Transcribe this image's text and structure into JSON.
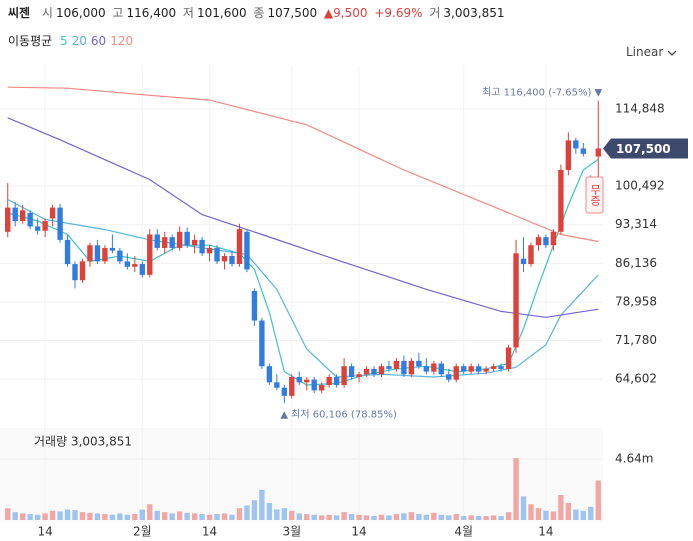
{
  "chart_data": {
    "type": "candlestick",
    "title": "씨젠",
    "summary": [
      {
        "label": "시",
        "value": "106,000"
      },
      {
        "label": "고",
        "value": "116,400"
      },
      {
        "label": "저",
        "value": "101,600"
      },
      {
        "label": "종",
        "value": "107,500"
      }
    ],
    "change": "▲9,500",
    "change_pct": "+9.69%",
    "volume_summary": {
      "label": "거",
      "value": "3,003,851"
    },
    "ma_title": "이동평균",
    "scale_label": "Linear",
    "categories": [
      null,
      null,
      null,
      null,
      null,
      "14",
      null,
      null,
      null,
      null,
      null,
      null,
      null,
      null,
      null,
      null,
      null,
      null,
      "2월",
      null,
      null,
      null,
      null,
      null,
      null,
      null,
      null,
      "14",
      null,
      null,
      null,
      null,
      null,
      null,
      null,
      null,
      null,
      null,
      "3월",
      null,
      null,
      null,
      null,
      null,
      null,
      null,
      null,
      "14",
      null,
      null,
      null,
      null,
      null,
      null,
      null,
      null,
      null,
      null,
      null,
      null,
      null,
      "4월",
      null,
      null,
      null,
      null,
      null,
      null,
      null,
      null,
      null,
      null,
      "14",
      null,
      null,
      null,
      null,
      null,
      null,
      null
    ],
    "open": [
      92000,
      96500,
      94000,
      95500,
      93000,
      92200,
      94500,
      96500,
      90500,
      86000,
      83000,
      86500,
      89500,
      86500,
      89000,
      88500,
      86500,
      85500,
      86000,
      84000,
      91500,
      89000,
      91000,
      89000,
      92000,
      89500,
      90500,
      88000,
      89000,
      86500,
      87500,
      86000,
      92000,
      81000,
      75500,
      67000,
      64000,
      63000,
      61500,
      65000,
      64000,
      64500,
      62500,
      63500,
      65000,
      63500,
      67000,
      65000,
      65500,
      66500,
      65500,
      67000,
      66500,
      68000,
      65500,
      68000,
      67000,
      66000,
      67500,
      65500,
      64500,
      67000,
      66000,
      67000,
      66000,
      66500,
      67000,
      66500,
      70500,
      87000,
      86000,
      89500,
      91000,
      89500,
      92000,
      103500,
      109000,
      107500,
      101500,
      106000
    ],
    "high": [
      101100,
      97500,
      97000,
      96000,
      94500,
      94500,
      97000,
      97200,
      91500,
      86500,
      87000,
      90000,
      90500,
      89500,
      91500,
      89000,
      88000,
      87500,
      86500,
      92500,
      92500,
      92000,
      91500,
      93000,
      92800,
      91500,
      91000,
      89500,
      89500,
      88000,
      88500,
      93500,
      92500,
      81500,
      76000,
      67500,
      65500,
      63500,
      65500,
      66000,
      65000,
      65000,
      64000,
      65500,
      65500,
      68500,
      67500,
      66000,
      67000,
      67000,
      67500,
      68000,
      68500,
      69000,
      68500,
      69500,
      68500,
      68000,
      68000,
      66500,
      67500,
      67500,
      67500,
      67500,
      67000,
      67500,
      67500,
      71000,
      90500,
      91000,
      90000,
      91500,
      91500,
      92500,
      104500,
      110500,
      109500,
      108500,
      102500,
      116400
    ],
    "low": [
      91000,
      93000,
      93500,
      92500,
      91500,
      91000,
      93000,
      90000,
      85500,
      81500,
      82500,
      85500,
      86000,
      86000,
      88000,
      86000,
      85000,
      84500,
      83500,
      83500,
      88500,
      88000,
      88500,
      88500,
      89000,
      88000,
      87500,
      86500,
      86000,
      85000,
      85500,
      85500,
      84500,
      74500,
      66500,
      63500,
      62500,
      60106,
      61000,
      63500,
      62500,
      62000,
      62000,
      63000,
      63000,
      63000,
      64500,
      64000,
      65000,
      65000,
      65000,
      66000,
      66000,
      65000,
      65000,
      66500,
      65500,
      65500,
      65000,
      64000,
      64000,
      65500,
      65500,
      65500,
      65500,
      66000,
      66000,
      66000,
      69500,
      84500,
      85500,
      88500,
      89000,
      88500,
      91500,
      102500,
      106500,
      106000,
      97500,
      101600
    ],
    "close": [
      96500,
      94000,
      96000,
      93000,
      92200,
      94000,
      96500,
      90500,
      86000,
      83000,
      86500,
      89500,
      86500,
      89000,
      88500,
      86500,
      85500,
      86000,
      84000,
      91500,
      89000,
      91000,
      89000,
      92000,
      89500,
      90500,
      88000,
      89000,
      86500,
      87500,
      86000,
      92500,
      85000,
      75500,
      67000,
      64000,
      63000,
      61500,
      65000,
      64000,
      64500,
      62500,
      63500,
      65000,
      63500,
      67000,
      65000,
      65500,
      66500,
      65500,
      67000,
      66500,
      68000,
      65500,
      68000,
      67000,
      66000,
      67500,
      65500,
      64500,
      67000,
      66000,
      67000,
      66000,
      66500,
      67000,
      66500,
      70500,
      88000,
      86000,
      89500,
      91000,
      89500,
      92000,
      103500,
      109000,
      107500,
      106500,
      98000,
      107500
    ],
    "up_color": "#e0403a",
    "down_color": "#2f7de1",
    "ylim": [
      56070,
      121160
    ],
    "yticks": [
      {
        "value": 114848,
        "label": "114,848"
      },
      {
        "value": 100492,
        "label": "100,492"
      },
      {
        "value": 93314,
        "label": "93,314"
      },
      {
        "value": 86136,
        "label": "86,136"
      },
      {
        "value": 78958,
        "label": "78,958"
      },
      {
        "value": 71780,
        "label": "71,780"
      },
      {
        "value": 64602,
        "label": "64,602"
      }
    ],
    "grid": true,
    "moving_averages": [
      {
        "name": "5",
        "color": "#3cc4c8",
        "x": [
          0,
          4,
          8,
          11,
          15,
          19,
          23,
          27,
          31,
          33,
          35,
          37,
          40,
          44,
          48,
          52,
          56,
          60,
          64,
          67,
          69,
          71,
          73,
          75,
          77,
          79
        ],
        "values": [
          95500,
          94000,
          91500,
          86500,
          87500,
          86500,
          89500,
          89500,
          88000,
          85000,
          77000,
          66000,
          63500,
          63800,
          65500,
          66500,
          67000,
          66000,
          66500,
          67500,
          74000,
          82000,
          89500,
          97000,
          103500,
          105500
        ]
      },
      {
        "name": "20",
        "color": "#58b6dc",
        "x": [
          0,
          5,
          13,
          19,
          26,
          32,
          36,
          40,
          44,
          50,
          57,
          64,
          68,
          72,
          74,
          79
        ],
        "values": [
          98000,
          94300,
          92400,
          90500,
          89000,
          87800,
          81300,
          70200,
          65000,
          65500,
          65000,
          65700,
          66800,
          71000,
          76500,
          84000
        ]
      },
      {
        "name": "60",
        "color": "#7265d0",
        "x": [
          0,
          7,
          19,
          26,
          34,
          44,
          56,
          66,
          72,
          79
        ],
        "values": [
          113200,
          109100,
          101700,
          95200,
          91500,
          86800,
          81300,
          77200,
          76100,
          77600
        ]
      },
      {
        "name": "120",
        "color": "#f08a80",
        "x": [
          0,
          8,
          18,
          27,
          40,
          53,
          66,
          74,
          79
        ],
        "values": [
          118900,
          118700,
          117500,
          116500,
          111900,
          103500,
          96100,
          91500,
          90200
        ]
      }
    ],
    "volume": {
      "title": "거래량 3,003,851",
      "values": [
        900000,
        600000,
        500000,
        450000,
        400000,
        500000,
        700000,
        650000,
        800000,
        750000,
        600000,
        550000,
        500000,
        450000,
        400000,
        500000,
        400000,
        450000,
        800000,
        1200000,
        700000,
        600000,
        500000,
        650000,
        550000,
        500000,
        450000,
        400000,
        450000,
        500000,
        400000,
        900000,
        1100000,
        1500000,
        2300000,
        1300000,
        800000,
        900000,
        700000,
        500000,
        450000,
        400000,
        350000,
        400000,
        350000,
        600000,
        450000,
        400000,
        350000,
        300000,
        400000,
        350000,
        450000,
        500000,
        600000,
        450000,
        400000,
        550000,
        400000,
        350000,
        450000,
        300000,
        350000,
        300000,
        300000,
        350000,
        300000,
        600000,
        4700000,
        1800000,
        1200000,
        900000,
        700000,
        650000,
        1900000,
        1300000,
        800000,
        700000,
        1000000,
        3003851
      ],
      "ylim": [
        0,
        6690000
      ],
      "yticks": [
        {
          "value": 4640000,
          "label": "4.64m"
        }
      ],
      "up_color": "#f2a7a5",
      "down_color": "#9ec4f0"
    },
    "annotations": {
      "high": "최고 116,400 (-7.65%) ▼",
      "low": "▲ 최저 60,106 (78.85%)",
      "last_price": "107,500",
      "event": "무증"
    }
  }
}
